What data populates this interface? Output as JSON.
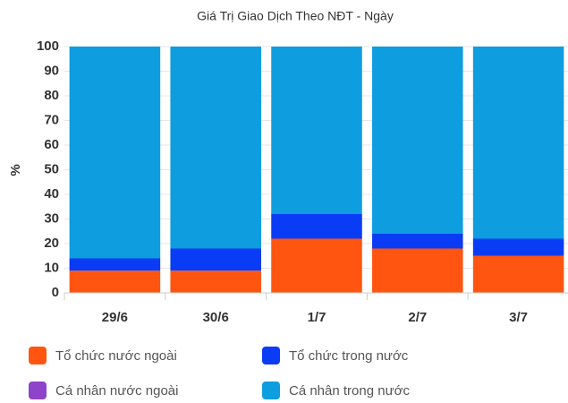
{
  "chart_data": {
    "type": "stacked_bar",
    "title": "Giá Trị Giao Dịch Theo NĐT - Ngày",
    "y_label": "%",
    "categories": [
      "29/6",
      "30/6",
      "1/7",
      "2/7",
      "3/7"
    ],
    "series": [
      {
        "name": "Tổ chức nước ngoài",
        "color": "#ff5510",
        "values": [
          9,
          9,
          22,
          18,
          15
        ]
      },
      {
        "name": "Tổ chức trong nước",
        "color": "#0a3cf5",
        "values": [
          5,
          9,
          10,
          6,
          7
        ]
      },
      {
        "name": "Cá nhân nước ngoài",
        "color": "#8e44c9",
        "values": [
          0,
          0,
          0,
          0,
          0
        ]
      },
      {
        "name": "Cá nhân trong nước",
        "color": "#0e9ddf",
        "values": [
          86,
          82,
          68,
          76,
          78
        ]
      }
    ],
    "ylim": [
      0,
      100
    ],
    "yticks": [
      0,
      10,
      20,
      30,
      40,
      50,
      60,
      70,
      80,
      90,
      100
    ],
    "grid": true
  }
}
